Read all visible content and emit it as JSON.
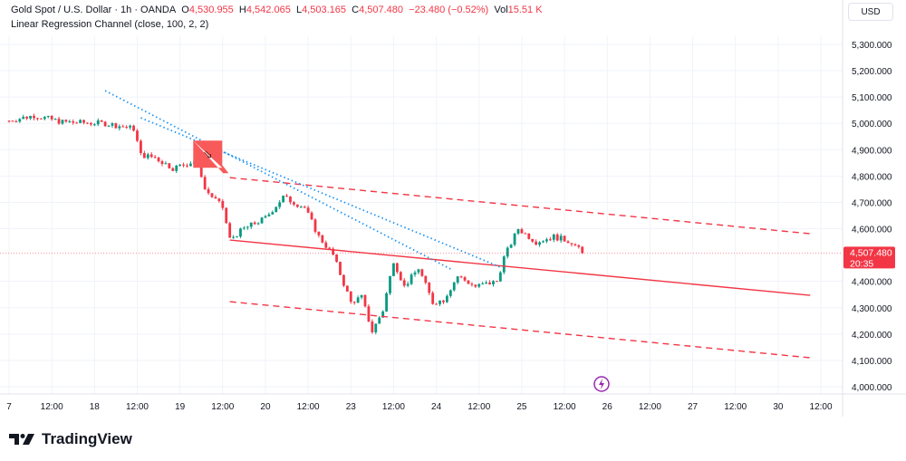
{
  "header": {
    "symbol": "Gold Spot / U.S. Dollar · 1h · OANDA",
    "o_label": "O",
    "o": "4,530.955",
    "h_label": "H",
    "h": "4,542.065",
    "l_label": "L",
    "l": "4,503.165",
    "c_label": "C",
    "c": "4,507.480",
    "change": "−23.480 (−0.52%)",
    "vol_label": "Vol",
    "vol": "15.51 K",
    "indicator": "Linear Regression Channel (close, 100, 2, 2)"
  },
  "currency_button": "USD",
  "brand": "TradingView",
  "colors": {
    "up": "#089981",
    "down": "#f23645",
    "trend": "#2196f3",
    "channel": "#f23645"
  },
  "chart_data": {
    "type": "candlestick",
    "ylim": [
      3950,
      5380
    ],
    "y_ticks": [
      "5,300.000",
      "5,200.000",
      "5,100.000",
      "5,000.000",
      "4,900.000",
      "4,800.000",
      "4,700.000",
      "4,600.000",
      "4,400.000",
      "4,300.000",
      "4,200.000",
      "4,100.000",
      "4,000.000"
    ],
    "y_tick_values": [
      5300,
      5200,
      5100,
      5000,
      4900,
      4800,
      4700,
      4600,
      4400,
      4300,
      4200,
      4100,
      4000
    ],
    "x_ticks": [
      "7",
      "12:00",
      "18",
      "12:00",
      "19",
      "12:00",
      "20",
      "12:00",
      "23",
      "12:00",
      "24",
      "12:00",
      "25",
      "12:00",
      "26",
      "12:00",
      "27",
      "12:00",
      "30",
      "12:00"
    ],
    "x_tick_index": [
      0,
      12,
      24,
      36,
      48,
      60,
      72,
      84,
      96,
      108,
      120,
      132,
      144,
      156,
      168,
      180,
      192,
      204,
      216,
      228
    ],
    "price_path": [
      [
        0,
        5010
      ],
      [
        7,
        5030
      ],
      [
        15,
        5005
      ],
      [
        27,
        5000
      ],
      [
        35,
        4980
      ],
      [
        37,
        4880
      ],
      [
        41,
        4870
      ],
      [
        46,
        4830
      ],
      [
        53,
        4860
      ],
      [
        55,
        4750
      ],
      [
        60,
        4680
      ],
      [
        62,
        4560
      ],
      [
        66,
        4600
      ],
      [
        72,
        4640
      ],
      [
        77,
        4720
      ],
      [
        83,
        4680
      ],
      [
        87,
        4570
      ],
      [
        91,
        4500
      ],
      [
        96,
        4320
      ],
      [
        99,
        4340
      ],
      [
        102,
        4210
      ],
      [
        105,
        4290
      ],
      [
        108,
        4480
      ],
      [
        111,
        4380
      ],
      [
        115,
        4450
      ],
      [
        119,
        4320
      ],
      [
        122,
        4330
      ],
      [
        126,
        4420
      ],
      [
        131,
        4380
      ],
      [
        137,
        4400
      ],
      [
        139,
        4490
      ],
      [
        143,
        4600
      ],
      [
        148,
        4550
      ],
      [
        153,
        4570
      ],
      [
        158,
        4550
      ],
      [
        161,
        4507
      ]
    ],
    "last_price": "4,507.480",
    "last_price_value": 4507.48,
    "countdown": "20:35",
    "regression_channel": {
      "start_index": 62,
      "end_index": 225,
      "mid": [
        4557,
        4347
      ],
      "upper": [
        4794,
        4581
      ],
      "lower": [
        4323,
        4110
      ]
    },
    "trendlines": [
      {
        "from": [
          27,
          5124
        ],
        "to": [
          124,
          4447
        ]
      },
      {
        "from": [
          37,
          5021
        ],
        "to": [
          138,
          4454
        ]
      }
    ],
    "sell_marker": {
      "index": 53,
      "price": 4900
    }
  }
}
